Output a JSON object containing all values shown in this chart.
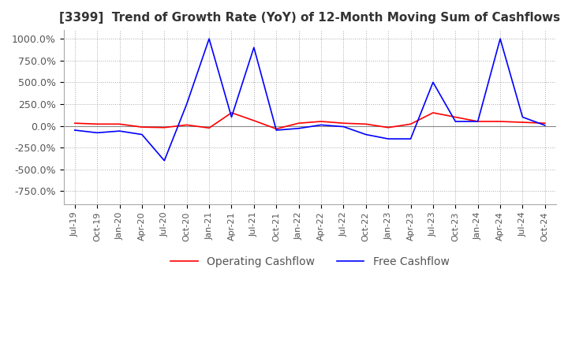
{
  "title": "[3399]  Trend of Growth Rate (YoY) of 12-Month Moving Sum of Cashflows",
  "title_fontsize": 11,
  "ylim": [
    -900,
    1100
  ],
  "yticks": [
    -750,
    -500,
    -250,
    0,
    250,
    500,
    750,
    1000
  ],
  "ytick_labels": [
    "-750.0%",
    "-500.0%",
    "-250.0%",
    "0.0%",
    "250.0%",
    "500.0%",
    "750.0%",
    "1000.0%"
  ],
  "background_color": "#ffffff",
  "grid_color": "#aaaaaa",
  "operating_color": "#ff0000",
  "free_color": "#0000ff",
  "legend_labels": [
    "Operating Cashflow",
    "Free Cashflow"
  ],
  "x_labels": [
    "Jul-19",
    "Oct-19",
    "Jan-20",
    "Apr-20",
    "Jul-20",
    "Oct-20",
    "Jan-21",
    "Apr-21",
    "Jul-21",
    "Oct-21",
    "Jan-22",
    "Apr-22",
    "Jul-22",
    "Oct-22",
    "Jan-23",
    "Apr-23",
    "Jul-23",
    "Oct-23",
    "Jan-24",
    "Apr-24",
    "Jul-24",
    "Oct-24"
  ],
  "operating_cashflow": [
    30,
    20,
    20,
    -15,
    -20,
    10,
    -25,
    150,
    60,
    -35,
    30,
    50,
    30,
    20,
    -20,
    20,
    150,
    100,
    50,
    50,
    40,
    30
  ],
  "free_cashflow": [
    -50,
    -80,
    -60,
    -100,
    -400,
    250,
    1000,
    100,
    900,
    -50,
    -30,
    10,
    -10,
    -100,
    -150,
    -150,
    500,
    50,
    50,
    1000,
    100,
    5
  ]
}
